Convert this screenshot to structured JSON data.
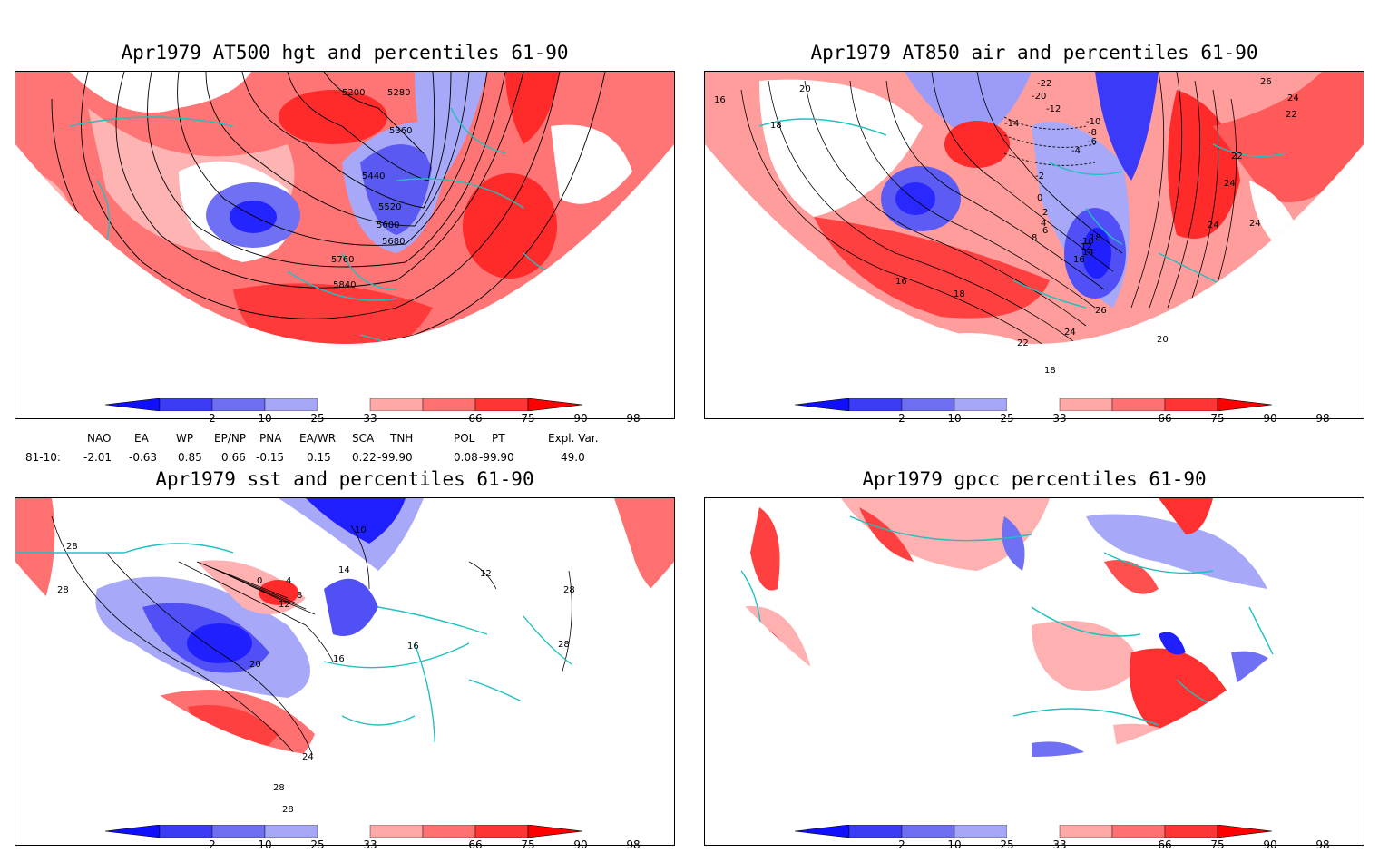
{
  "panels": [
    {
      "title": "Apr1979 AT500 hgt and percentiles 61-90",
      "contour_labels": [
        "5200",
        "5280",
        "5360",
        "5440",
        "5520",
        "5600",
        "5680",
        "5760",
        "5840"
      ]
    },
    {
      "title": "Apr1979 AT850 air and percentiles 61-90",
      "contour_labels": [
        "16",
        "18",
        "20",
        "26",
        "24",
        "22",
        "-22",
        "-20",
        "-14",
        "-12",
        "-10",
        "-8",
        "-6",
        "-4",
        "-2",
        "0",
        "2",
        "4",
        "6",
        "8",
        "10",
        "12",
        "14",
        "16",
        "18",
        "26",
        "24",
        "22",
        "20",
        "18",
        "24",
        "22",
        "24",
        "24",
        "16",
        "18"
      ]
    },
    {
      "title": "Apr1979 sst and percentiles 61-90",
      "contour_labels": [
        "28",
        "28",
        "0",
        "4",
        "8",
        "12",
        "14",
        "10",
        "16",
        "20",
        "16",
        "12",
        "28",
        "28",
        "24",
        "28",
        "28"
      ]
    },
    {
      "title": "Apr1979 gpcc percentiles 61-90",
      "contour_labels": []
    }
  ],
  "colorbar": {
    "labels": [
      "2",
      "10",
      "25",
      "33",
      "66",
      "75",
      "90",
      "98"
    ],
    "colors": [
      "#1010ff",
      "#3c3cf5",
      "#6e6ef0",
      "#a6a6f6",
      "#ffffff",
      "#ffa8a8",
      "#ff7070",
      "#ff3434",
      "#ff0000"
    ]
  },
  "indices": {
    "headers": [
      "NAO",
      "EA",
      "WP",
      "EP/NP",
      "PNA",
      "EA/WR",
      "SCA",
      "TNH",
      "POL",
      "PT",
      "Expl. Var."
    ],
    "row_label": "81-10:",
    "values": [
      "-2.01",
      "-0.63",
      "0.85",
      "0.66",
      "-0.15",
      "0.15",
      "0.22",
      "-99.90",
      "0.08",
      "-99.90",
      "49.0"
    ]
  },
  "colors": {
    "coast": "#20c0c0",
    "contour": "#000000",
    "red_dark": "#ff2020",
    "red_mid": "#ff7070",
    "red_light": "#ffb0b0",
    "blue_dark": "#2020ff",
    "blue_mid": "#6060ff",
    "blue_light": "#a8a8ff"
  }
}
